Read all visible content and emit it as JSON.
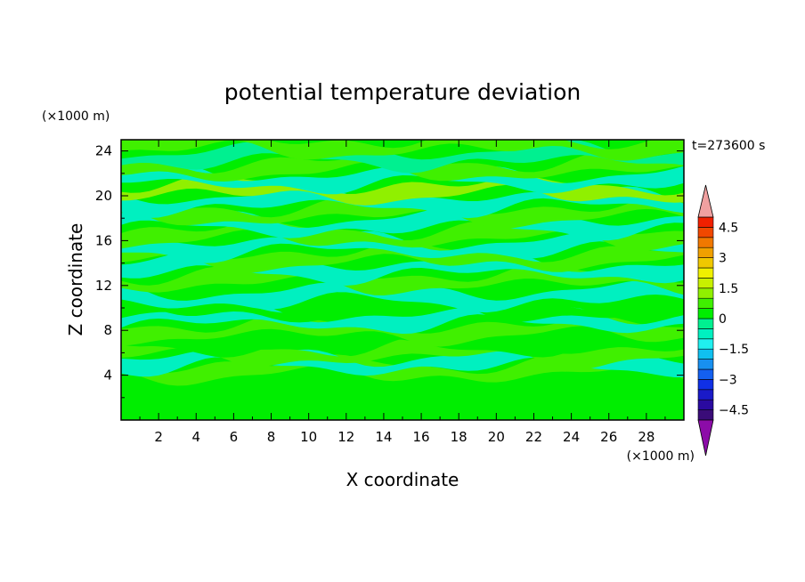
{
  "chart_data": {
    "type": "heatmap",
    "title": "potential temperature deviation",
    "xlabel": "X coordinate",
    "ylabel": "Z coordinate",
    "x_unit": "(×1000 m)",
    "y_unit": "(×1000 m)",
    "time_label": "t=273600 s",
    "xlim": [
      0,
      30
    ],
    "ylim": [
      0,
      25
    ],
    "x_ticks": [
      2,
      4,
      6,
      8,
      10,
      12,
      14,
      16,
      18,
      20,
      22,
      24,
      26,
      28
    ],
    "y_ticks": [
      4,
      8,
      12,
      16,
      20,
      24
    ],
    "colorbar": {
      "levels": [
        -5.0,
        -4.5,
        -4.0,
        -3.5,
        -3.0,
        -2.5,
        -2.0,
        -1.5,
        -1.0,
        -0.5,
        0.0,
        0.5,
        1.0,
        1.5,
        2.0,
        2.5,
        3.0,
        3.5,
        4.0,
        4.5,
        5.0
      ],
      "colors": [
        "#3a0c78",
        "#2a0aa0",
        "#1a1ac8",
        "#1030e6",
        "#1460f0",
        "#1890f0",
        "#10c0f0",
        "#20f0f0",
        "#00f0c0",
        "#00f090",
        "#00ee00",
        "#40f000",
        "#90f000",
        "#c8f000",
        "#f0f000",
        "#f0c800",
        "#f0a000",
        "#f07800",
        "#f04800",
        "#f02000"
      ],
      "under_color": "#8c0ca8",
      "over_color": "#f0a0a0",
      "tick_labels": [
        "4.5",
        "3",
        "1.5",
        "0",
        "−1.5",
        "−3",
        "−4.5"
      ]
    },
    "bands": [
      {
        "z": 1.5,
        "value": 0.4
      },
      {
        "z": 3.0,
        "value": 0.1
      },
      {
        "z": 4.5,
        "value": 0.6
      },
      {
        "z": 5.2,
        "value": -0.8
      },
      {
        "z": 6.0,
        "value": 0.9
      },
      {
        "z": 7.0,
        "value": 0.3
      },
      {
        "z": 8.0,
        "value": 0.6
      },
      {
        "z": 9.0,
        "value": -0.6
      },
      {
        "z": 10.0,
        "value": 0.4
      },
      {
        "z": 11.0,
        "value": -0.9
      },
      {
        "z": 12.5,
        "value": 0.8
      },
      {
        "z": 13.5,
        "value": -0.9
      },
      {
        "z": 14.5,
        "value": 0.6
      },
      {
        "z": 15.5,
        "value": -0.7
      },
      {
        "z": 16.5,
        "value": 0.9
      },
      {
        "z": 17.5,
        "value": -0.9
      },
      {
        "z": 18.5,
        "value": 0.8
      },
      {
        "z": 19.5,
        "value": -1.0
      },
      {
        "z": 20.5,
        "value": 1.0
      },
      {
        "z": 21.5,
        "value": -0.8
      },
      {
        "z": 22.5,
        "value": 0.5
      },
      {
        "z": 23.5,
        "value": -0.5
      },
      {
        "z": 24.5,
        "value": 0.9
      }
    ]
  }
}
